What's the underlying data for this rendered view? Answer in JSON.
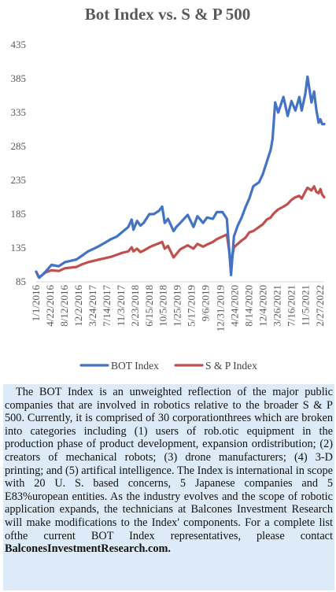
{
  "chart_data": {
    "type": "line",
    "title": "Bot Index vs. S & P 500",
    "xlabel": "",
    "ylabel": "",
    "ylim": [
      85,
      435
    ],
    "yticks": [
      85,
      135,
      185,
      235,
      285,
      335,
      385,
      435
    ],
    "xlim": [
      "2016-01-01",
      "2022-03-31"
    ],
    "xticks": [
      "1/1/2016",
      "4/22/2016",
      "8/12/2016",
      "12/2/2016",
      "3/24/2017",
      "7/14/2017",
      "11/3/2017",
      "2/23/2018",
      "6/15/2018",
      "10/5/2018",
      "1/25/2019",
      "5/17/2019",
      "9/6/2019",
      "12/31/2019",
      "4/24/2020",
      "8/14/2020",
      "12/4/2020",
      "3/26/2021",
      "7/16/2021",
      "11/5/2021",
      "2/27/2022"
    ],
    "grid": false,
    "legend_position": "bottom",
    "series": [
      {
        "name": "BOT Index",
        "color": "#4472c4",
        "x": [
          "2016-01-01",
          "2016-01-25",
          "2016-02-12",
          "2016-03-15",
          "2016-05-01",
          "2016-06-27",
          "2016-08-15",
          "2016-10-01",
          "2016-11-15",
          "2016-12-31",
          "2017-02-15",
          "2017-04-01",
          "2017-05-15",
          "2017-07-01",
          "2017-08-15",
          "2017-10-01",
          "2017-11-15",
          "2017-12-31",
          "2018-01-26",
          "2018-02-09",
          "2018-03-10",
          "2018-04-05",
          "2018-05-01",
          "2018-06-15",
          "2018-07-20",
          "2018-08-31",
          "2018-09-25",
          "2018-10-15",
          "2018-11-10",
          "2018-12-24",
          "2019-01-15",
          "2019-02-15",
          "2019-04-15",
          "2019-05-31",
          "2019-07-01",
          "2019-08-15",
          "2019-09-15",
          "2019-10-31",
          "2019-12-01",
          "2020-01-15",
          "2020-02-19",
          "2020-03-23",
          "2020-04-15",
          "2020-05-15",
          "2020-06-15",
          "2020-07-15",
          "2020-08-15",
          "2020-09-15",
          "2020-10-31",
          "2020-11-30",
          "2020-12-31",
          "2021-01-31",
          "2021-02-15",
          "2021-03-08",
          "2021-04-01",
          "2021-05-12",
          "2021-06-15",
          "2021-07-15",
          "2021-08-15",
          "2021-09-15",
          "2021-10-04",
          "2021-11-01",
          "2021-11-19",
          "2021-12-20",
          "2022-01-10",
          "2022-01-27",
          "2022-02-15",
          "2022-03-01",
          "2022-03-15",
          "2022-03-31"
        ],
        "values": [
          100,
          91,
          94,
          100,
          110,
          108,
          114,
          116,
          118,
          124,
          130,
          134,
          138,
          143,
          148,
          152,
          159,
          166,
          177,
          162,
          175,
          168,
          172,
          185,
          185,
          190,
          196,
          172,
          178,
          160,
          166,
          172,
          184,
          166,
          182,
          172,
          180,
          178,
          188,
          188,
          178,
          95,
          152,
          168,
          180,
          195,
          208,
          226,
          232,
          244,
          262,
          280,
          296,
          350,
          335,
          358,
          330,
          352,
          338,
          358,
          338,
          362,
          388,
          350,
          366,
          340,
          320,
          325,
          318,
          318
        ]
      },
      {
        "name": "S & P Index",
        "color": "#c0504d",
        "x": [
          "2016-01-01",
          "2016-01-20",
          "2016-02-11",
          "2016-03-15",
          "2016-05-01",
          "2016-06-27",
          "2016-08-15",
          "2016-10-01",
          "2016-11-15",
          "2016-12-31",
          "2017-02-15",
          "2017-04-01",
          "2017-05-15",
          "2017-07-01",
          "2017-08-15",
          "2017-10-01",
          "2017-11-15",
          "2017-12-31",
          "2018-01-26",
          "2018-02-09",
          "2018-03-10",
          "2018-04-05",
          "2018-05-01",
          "2018-06-15",
          "2018-07-20",
          "2018-08-31",
          "2018-09-25",
          "2018-10-15",
          "2018-11-10",
          "2018-12-24",
          "2019-01-15",
          "2019-02-15",
          "2019-04-15",
          "2019-05-31",
          "2019-07-01",
          "2019-08-15",
          "2019-09-15",
          "2019-10-31",
          "2019-12-01",
          "2020-01-15",
          "2020-02-19",
          "2020-03-23",
          "2020-04-15",
          "2020-05-15",
          "2020-06-15",
          "2020-07-15",
          "2020-08-15",
          "2020-09-15",
          "2020-10-31",
          "2020-11-30",
          "2020-12-31",
          "2021-01-31",
          "2021-02-15",
          "2021-03-08",
          "2021-04-01",
          "2021-05-12",
          "2021-06-15",
          "2021-07-15",
          "2021-08-15",
          "2021-09-15",
          "2021-10-04",
          "2021-11-01",
          "2021-11-19",
          "2021-12-20",
          "2022-01-10",
          "2022-01-27",
          "2022-02-15",
          "2022-03-01",
          "2022-03-15",
          "2022-03-31"
        ],
        "values": [
          100,
          92,
          94,
          99,
          102,
          101,
          105,
          106,
          107,
          111,
          114,
          116,
          118,
          120,
          122,
          125,
          128,
          130,
          136,
          130,
          134,
          129,
          131,
          136,
          139,
          142,
          144,
          134,
          138,
          121,
          126,
          133,
          139,
          134,
          141,
          137,
          140,
          144,
          148,
          152,
          155,
          112,
          136,
          141,
          146,
          150,
          158,
          160,
          166,
          170,
          177,
          180,
          184,
          188,
          192,
          196,
          200,
          206,
          210,
          212,
          208,
          218,
          224,
          220,
          226,
          218,
          216,
          222,
          214,
          210
        ]
      }
    ]
  },
  "description": {
    "paragraph": "The BOT Index is an unweighted reflection of the major public companies that are involved in robotics relative to the broader S & P 500. Currently, it is comprised of 30 corporationthrees which are broken into categories including (1) users of rob.otic equipment in the production phase of product development, expansion ordistribution; (2) creators of mechanical robots; (3) drone manufacturers; (4) 3-D printing; and (5) artifical intelligence. The Index is international in scope with 20 U. S. based concerns, 5 Japanese companies and 5 E83%uropean entities. As the industry evolves and the scope of robotic application expands, the technicians at Balcones Investment Research will make modifications to the Index' components. For a  complete list ofthe current BOT Index representatives, please contact",
    "contact": "BalconesInvestmentResearch.com."
  }
}
